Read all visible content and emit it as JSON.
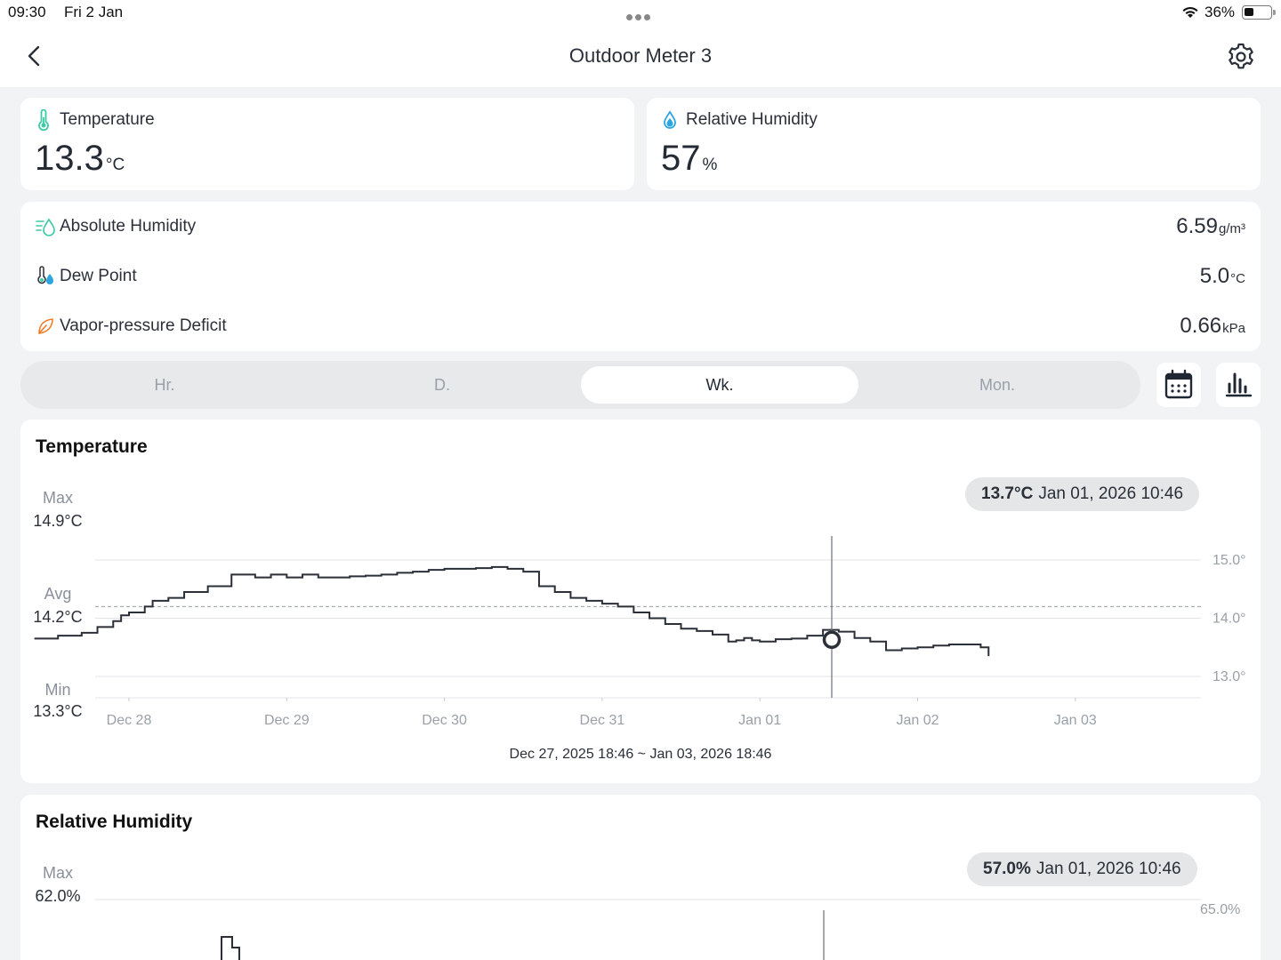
{
  "status_bar": {
    "time": "09:30",
    "date": "Fri 2 Jan",
    "battery_pct": "36%",
    "battery_level": 0.36
  },
  "nav": {
    "title": "Outdoor Meter 3",
    "back_icon": "chevron-left-icon",
    "settings_icon": "gear-icon"
  },
  "summary": {
    "temperature": {
      "label": "Temperature",
      "value": "13.3",
      "unit": "°C",
      "icon": "thermometer-icon",
      "color": "#3cc9a6"
    },
    "humidity": {
      "label": "Relative Humidity",
      "value": "57",
      "unit": "%",
      "icon": "droplet-icon",
      "color": "#2da5e0"
    }
  },
  "details": [
    {
      "label": "Absolute Humidity",
      "value": "6.59",
      "unit": "g/m³",
      "icon": "absolute-humidity-icon"
    },
    {
      "label": "Dew Point",
      "value": "5.0",
      "unit": "°C",
      "icon": "dew-point-icon"
    },
    {
      "label": "Vapor-pressure Deficit",
      "value": "0.66",
      "unit": "kPa",
      "icon": "leaf-icon"
    }
  ],
  "period_tabs": [
    {
      "label": "Hr.",
      "active": false
    },
    {
      "label": "D.",
      "active": false
    },
    {
      "label": "Wk.",
      "active": true
    },
    {
      "label": "Mon.",
      "active": false
    }
  ],
  "toolbar": {
    "calendar_icon": "calendar-icon",
    "chart_icon": "bar-chart-icon"
  },
  "temp_chart": {
    "title": "Temperature",
    "max_label": "Max",
    "max_value": "14.9°C",
    "avg_label": "Avg",
    "avg_value": "14.2°C",
    "min_label": "Min",
    "min_value": "13.3°C",
    "tooltip_value": "13.7°C",
    "tooltip_time": "Jan 01, 2026 10:46",
    "range": "Dec 27, 2025 18:46 ~ Jan 03, 2026 18:46"
  },
  "humidity_chart": {
    "title": "Relative Humidity",
    "max_label": "Max",
    "max_value": "62.0%",
    "tooltip_value": "57.0%",
    "tooltip_time": "Jan 01, 2026 10:46",
    "y_tick_top": "65.0%"
  },
  "chart_data": [
    {
      "type": "line",
      "title": "Temperature",
      "x_ticks": [
        "Dec 28",
        "Dec 29",
        "Dec 30",
        "Dec 31",
        "Jan 01",
        "Jan 02",
        "Jan 03"
      ],
      "y_ticks": [
        "15.0°",
        "14.0°",
        "13.0°"
      ],
      "y_tick_values": [
        15.0,
        14.0,
        13.0
      ],
      "ylim": [
        12.6,
        15.3
      ],
      "avg_line": 14.2,
      "grid": true,
      "x_unit": "days since Dec 27, 2025 18:46",
      "series": [
        {
          "x": [
            0,
            0.15,
            0.3,
            0.4,
            0.5,
            0.55,
            0.6,
            0.7,
            0.75,
            0.85,
            0.95,
            1.1,
            1.25,
            1.4,
            1.5,
            1.6,
            1.65,
            1.7,
            1.8,
            1.9,
            2.0,
            2.1,
            2.2,
            2.3,
            2.4,
            2.5,
            2.6,
            2.7,
            2.8,
            2.9,
            3.0,
            3.1,
            3.2,
            3.3,
            3.4,
            3.5,
            3.6,
            3.7,
            3.8,
            3.9,
            4.0,
            4.1,
            4.2,
            4.3,
            4.4,
            4.45,
            4.5,
            4.55,
            4.6,
            4.7,
            4.8,
            4.9,
            5.0,
            5.1,
            5.2,
            5.3,
            5.4,
            5.5,
            5.6,
            5.7,
            5.8,
            5.9,
            6.0,
            6.05
          ],
          "values": [
            13.65,
            13.7,
            13.75,
            13.85,
            13.95,
            14.05,
            14.1,
            14.2,
            14.3,
            14.35,
            14.45,
            14.55,
            14.75,
            14.7,
            14.75,
            14.7,
            14.7,
            14.75,
            14.7,
            14.7,
            14.72,
            14.73,
            14.75,
            14.78,
            14.8,
            14.83,
            14.85,
            14.85,
            14.86,
            14.88,
            14.85,
            14.8,
            14.55,
            14.45,
            14.35,
            14.3,
            14.25,
            14.2,
            14.1,
            14.0,
            13.9,
            13.82,
            13.78,
            13.72,
            13.6,
            13.62,
            13.66,
            13.62,
            13.6,
            13.64,
            13.65,
            13.7,
            13.8,
            13.77,
            13.66,
            13.6,
            13.45,
            13.48,
            13.5,
            13.53,
            13.55,
            13.55,
            13.5,
            13.35
          ]
        }
      ]
    },
    {
      "type": "line",
      "title": "Relative Humidity",
      "y_ticks": [
        "65.0%"
      ],
      "y_tick_values": [
        65.0
      ],
      "series": []
    }
  ]
}
